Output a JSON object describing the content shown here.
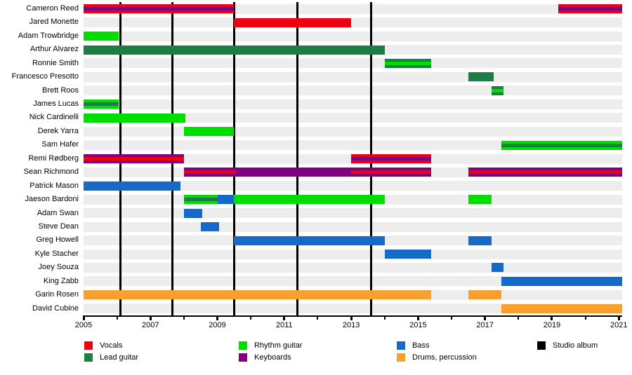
{
  "chart_data": {
    "type": "timeline",
    "title": "",
    "x_domain": [
      2005,
      2021.1
    ],
    "x_ticks_labeled": [
      2005,
      2007,
      2009,
      2011,
      2013,
      2015,
      2017,
      2019,
      2021
    ],
    "x_minor_tick_every_year": true,
    "grid": false,
    "legend_position": "bottom",
    "colors": {
      "vocals": "#ee0011",
      "lead": "#1c7d45",
      "rhythm": "#00dd00",
      "keyboards": "#800080",
      "bass": "#1569c8",
      "drums": "#f8a02d",
      "album": "#000000",
      "row_band": "#ededed"
    },
    "legend": [
      {
        "label": "Vocals",
        "color": "vocals"
      },
      {
        "label": "Lead guitar",
        "color": "lead"
      },
      {
        "label": "Rhythm guitar",
        "color": "rhythm"
      },
      {
        "label": "Keyboards",
        "color": "keyboards"
      },
      {
        "label": "Bass",
        "color": "bass"
      },
      {
        "label": "Drums, percussion",
        "color": "drums"
      },
      {
        "label": "Studio album",
        "color": "album"
      }
    ],
    "legend_columns": [
      [
        0,
        1
      ],
      [
        2,
        3
      ],
      [
        4,
        5
      ],
      [
        6
      ]
    ],
    "album_release_years": [
      2006.1,
      2007.65,
      2009.5,
      2011.4,
      2013.6
    ],
    "members": [
      {
        "name": "Cameron Reed",
        "bars": [
          {
            "s": 2005,
            "e": 2009.5,
            "c": "vocals",
            "st": "keyboards"
          },
          {
            "s": 2019.2,
            "e": 2021.1,
            "c": "vocals",
            "st": "keyboards"
          }
        ]
      },
      {
        "name": "Jared Monette",
        "bars": [
          {
            "s": 2009.5,
            "e": 2013.0,
            "c": "vocals"
          }
        ]
      },
      {
        "name": "Adam Trowbridge",
        "bars": [
          {
            "s": 2005,
            "e": 2006.05,
            "c": "rhythm"
          }
        ]
      },
      {
        "name": "Arthur Alvarez",
        "bars": [
          {
            "s": 2005,
            "e": 2014.0,
            "c": "lead"
          }
        ]
      },
      {
        "name": "Ronnie Smith",
        "bars": [
          {
            "s": 2014.0,
            "e": 2015.4,
            "c": "lead",
            "st": "rhythm"
          }
        ]
      },
      {
        "name": "Francesco Presotto",
        "bars": [
          {
            "s": 2016.5,
            "e": 2017.25,
            "c": "lead"
          }
        ]
      },
      {
        "name": "Brett Roos",
        "bars": [
          {
            "s": 2017.2,
            "e": 2017.55,
            "c": "lead",
            "st": "rhythm"
          }
        ]
      },
      {
        "name": "James Lucas",
        "bars": [
          {
            "s": 2005,
            "e": 2006.05,
            "c": "rhythm",
            "st": "lead"
          }
        ]
      },
      {
        "name": "Nick Cardinelli",
        "bars": [
          {
            "s": 2005,
            "e": 2008.05,
            "c": "rhythm"
          }
        ]
      },
      {
        "name": "Derek Yarra",
        "bars": [
          {
            "s": 2008.0,
            "e": 2009.5,
            "c": "rhythm"
          }
        ]
      },
      {
        "name": "Sam Hafer",
        "bars": [
          {
            "s": 2017.5,
            "e": 2021.1,
            "c": "rhythm",
            "st": "lead"
          }
        ]
      },
      {
        "name": "Remi Rødberg",
        "bars": [
          {
            "s": 2005,
            "e": 2008.0,
            "c": "keyboards",
            "st": "vocals"
          },
          {
            "s": 2013.0,
            "e": 2015.4,
            "c": "vocals",
            "st": "keyboards"
          }
        ]
      },
      {
        "name": "Sean Richmond",
        "bars": [
          {
            "s": 2008.0,
            "e": 2009.55,
            "c": "keyboards",
            "st": "vocals"
          },
          {
            "s": 2009.55,
            "e": 2013.0,
            "c": "keyboards"
          },
          {
            "s": 2013.0,
            "e": 2015.4,
            "c": "keyboards",
            "st": "vocals"
          },
          {
            "s": 2016.5,
            "e": 2021.1,
            "c": "keyboards",
            "st": "vocals"
          }
        ]
      },
      {
        "name": "Patrick Mason",
        "bars": [
          {
            "s": 2005,
            "e": 2007.9,
            "c": "bass"
          }
        ]
      },
      {
        "name": "Jaeson Bardoni",
        "bars": [
          {
            "s": 2008.0,
            "e": 2009.0,
            "c": "rhythm",
            "st": "lead"
          },
          {
            "s": 2009.0,
            "e": 2009.5,
            "c": "bass"
          },
          {
            "s": 2009.5,
            "e": 2014.0,
            "c": "rhythm"
          },
          {
            "s": 2016.5,
            "e": 2017.2,
            "c": "rhythm"
          }
        ]
      },
      {
        "name": "Adam Swan",
        "bars": [
          {
            "s": 2008.0,
            "e": 2008.55,
            "c": "bass"
          }
        ]
      },
      {
        "name": "Steve Dean",
        "bars": [
          {
            "s": 2008.5,
            "e": 2009.05,
            "c": "bass"
          }
        ]
      },
      {
        "name": "Greg Howell",
        "bars": [
          {
            "s": 2009.5,
            "e": 2014.0,
            "c": "bass"
          },
          {
            "s": 2016.5,
            "e": 2017.2,
            "c": "bass"
          }
        ]
      },
      {
        "name": "Kyle Stacher",
        "bars": [
          {
            "s": 2014.0,
            "e": 2015.4,
            "c": "bass"
          }
        ]
      },
      {
        "name": "Joey Souza",
        "bars": [
          {
            "s": 2017.2,
            "e": 2017.55,
            "c": "bass"
          }
        ]
      },
      {
        "name": "King Zabb",
        "bars": [
          {
            "s": 2017.5,
            "e": 2021.1,
            "c": "bass"
          }
        ]
      },
      {
        "name": "Garin Rosen",
        "bars": [
          {
            "s": 2005,
            "e": 2015.4,
            "c": "drums"
          },
          {
            "s": 2016.5,
            "e": 2017.5,
            "c": "drums"
          }
        ]
      },
      {
        "name": "David Cubine",
        "bars": [
          {
            "s": 2017.5,
            "e": 2021.1,
            "c": "drums"
          }
        ]
      }
    ]
  }
}
